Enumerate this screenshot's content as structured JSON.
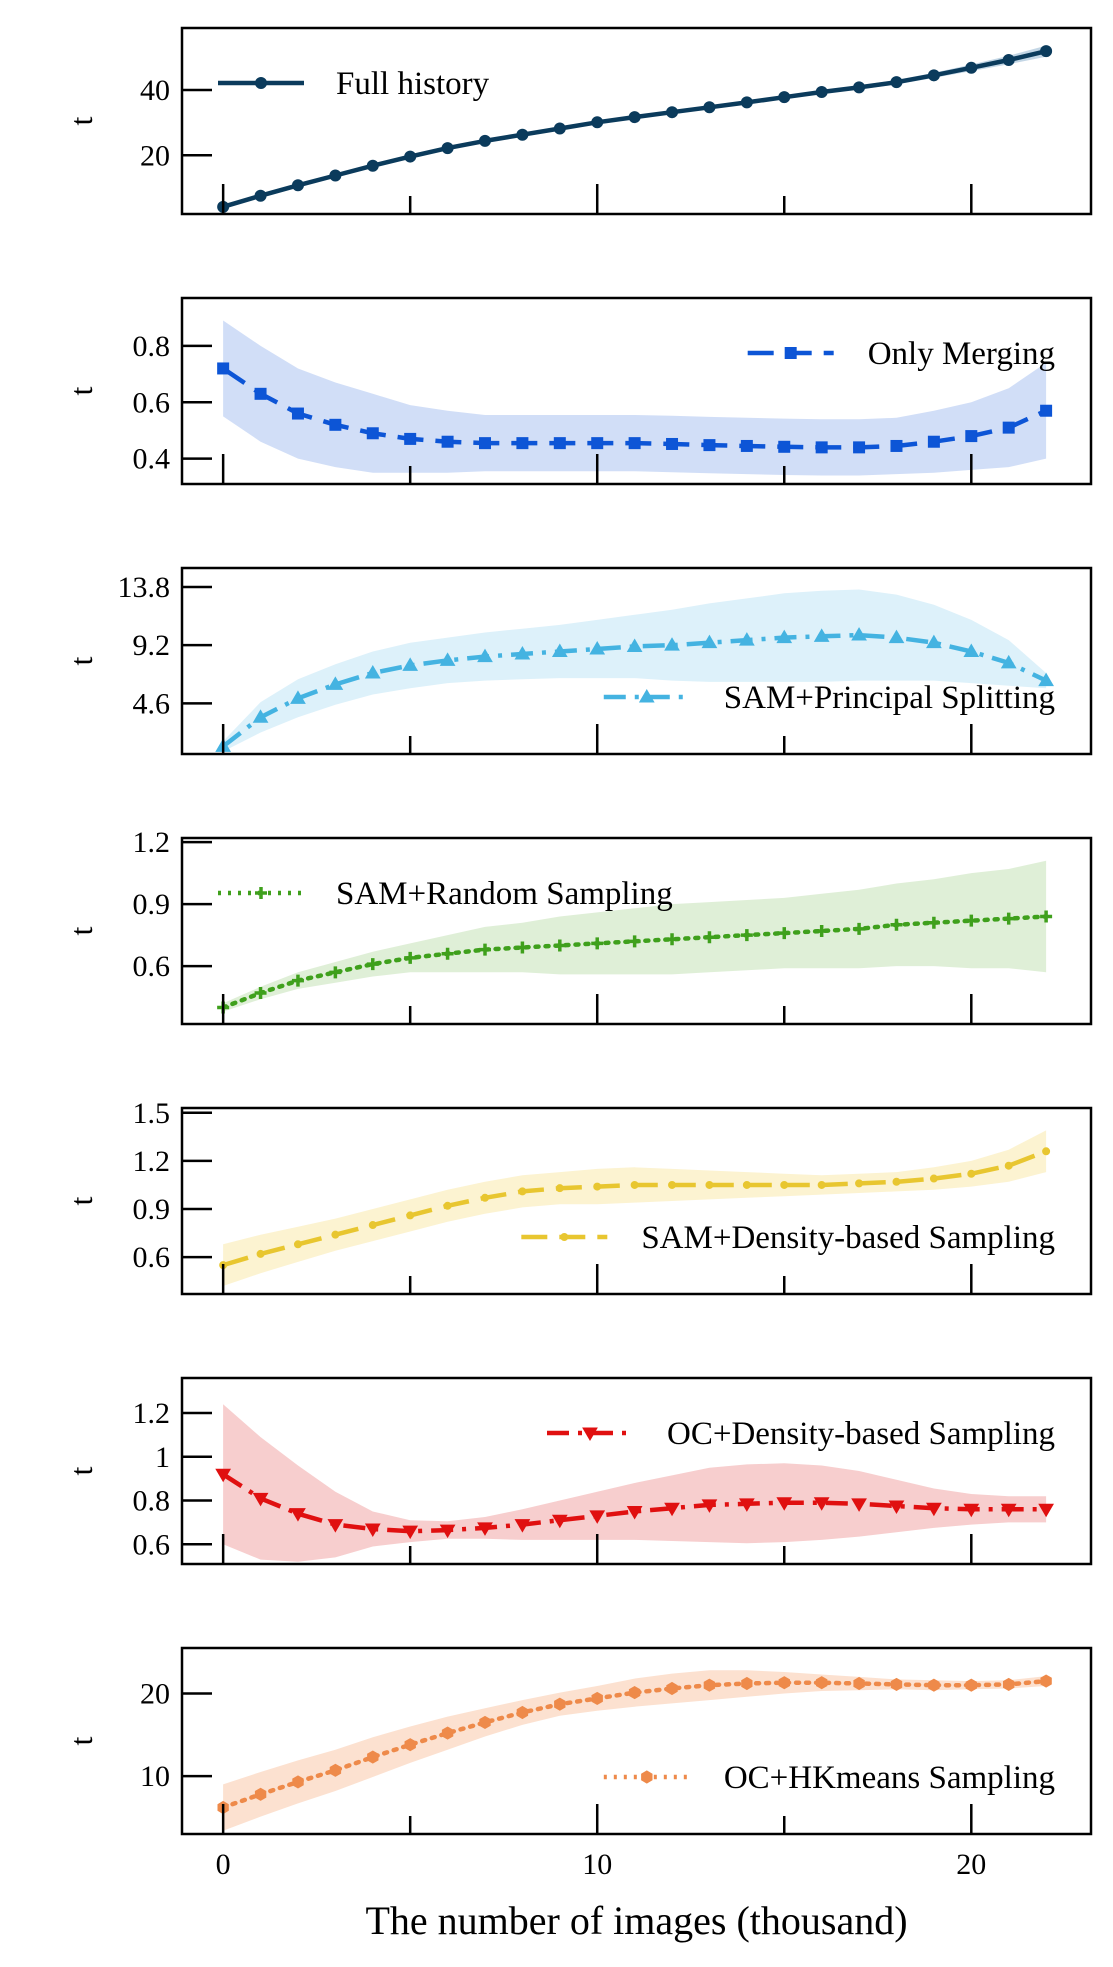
{
  "chart_data": [
    {
      "type": "line",
      "ylabel": "t",
      "yticks": [
        20,
        40
      ],
      "ylim": [
        2,
        59
      ],
      "legend": "Full history",
      "legend_position": "top-left",
      "color": "#0b3b5c",
      "band_color": "#b9cfe0",
      "line_style": "solid",
      "marker": "circle",
      "x": [
        0,
        1,
        2,
        3,
        4,
        5,
        6,
        7,
        8,
        9,
        10,
        11,
        12,
        13,
        14,
        15,
        16,
        17,
        18,
        19,
        20,
        21,
        22
      ],
      "values": [
        4.2,
        7.6,
        10.8,
        13.8,
        16.8,
        19.6,
        22.2,
        24.4,
        26.3,
        28.2,
        30.1,
        31.7,
        33.2,
        34.7,
        36.2,
        37.8,
        39.4,
        40.8,
        42.4,
        44.5,
        46.8,
        49.2,
        51.9
      ],
      "band": [
        0.3,
        0.3,
        0.3,
        0.3,
        0.3,
        0.3,
        0.3,
        0.3,
        0.3,
        0.3,
        0.4,
        0.4,
        0.4,
        0.4,
        0.5,
        0.5,
        0.5,
        0.6,
        0.7,
        0.8,
        1.0,
        1.3,
        1.7
      ]
    },
    {
      "type": "line",
      "ylabel": "t",
      "yticks": [
        0.4,
        0.6,
        0.8
      ],
      "ylim": [
        0.31,
        0.97
      ],
      "legend": "Only Merging",
      "legend_position": "top-right",
      "color": "#0d55d6",
      "band_color": "#c9d8f6",
      "line_style": "dashed",
      "marker": "square",
      "x": [
        0,
        1,
        2,
        3,
        4,
        5,
        6,
        7,
        8,
        9,
        10,
        11,
        12,
        13,
        14,
        15,
        16,
        17,
        18,
        19,
        20,
        21,
        22
      ],
      "values": [
        0.72,
        0.63,
        0.56,
        0.52,
        0.49,
        0.47,
        0.46,
        0.455,
        0.455,
        0.455,
        0.455,
        0.455,
        0.452,
        0.448,
        0.445,
        0.442,
        0.44,
        0.44,
        0.445,
        0.46,
        0.48,
        0.51,
        0.57
      ],
      "band": [
        0.17,
        0.17,
        0.16,
        0.15,
        0.14,
        0.12,
        0.11,
        0.1,
        0.1,
        0.1,
        0.1,
        0.1,
        0.1,
        0.1,
        0.1,
        0.1,
        0.1,
        0.1,
        0.1,
        0.11,
        0.12,
        0.14,
        0.17
      ]
    },
    {
      "type": "line",
      "ylabel": "t",
      "yticks": [
        4.6,
        9.2,
        13.8
      ],
      "ylim": [
        0.6,
        15.3
      ],
      "legend": "SAM+Principal Splitting",
      "legend_position": "lower-right",
      "color": "#44b3e1",
      "band_color": "#d7eef9",
      "line_style": "dashdot",
      "marker": "triangle",
      "x": [
        0,
        1,
        2,
        3,
        4,
        5,
        6,
        7,
        8,
        9,
        10,
        11,
        12,
        13,
        14,
        15,
        16,
        17,
        18,
        19,
        20,
        21,
        22
      ],
      "values": [
        1.2,
        3.5,
        5.0,
        6.1,
        7.0,
        7.6,
        8.0,
        8.3,
        8.5,
        8.7,
        8.9,
        9.1,
        9.2,
        9.4,
        9.6,
        9.8,
        9.9,
        10.0,
        9.8,
        9.4,
        8.7,
        7.8,
        6.4
      ],
      "band": [
        0.4,
        1.2,
        1.5,
        1.6,
        1.7,
        1.8,
        1.8,
        1.9,
        2.0,
        2.1,
        2.3,
        2.5,
        2.8,
        3.1,
        3.3,
        3.5,
        3.6,
        3.6,
        3.4,
        3.0,
        2.5,
        1.8,
        0.6
      ]
    },
    {
      "type": "line",
      "ylabel": "t",
      "yticks": [
        0.6,
        0.9,
        1.2
      ],
      "ylim": [
        0.32,
        1.22
      ],
      "legend": "SAM+Random Sampling",
      "legend_position": "top-left",
      "color": "#3fa01c",
      "band_color": "#d9ecd0",
      "line_style": "dotted",
      "marker": "plus",
      "x": [
        0,
        1,
        2,
        3,
        4,
        5,
        6,
        7,
        8,
        9,
        10,
        11,
        12,
        13,
        14,
        15,
        16,
        17,
        18,
        19,
        20,
        21,
        22
      ],
      "values": [
        0.4,
        0.47,
        0.53,
        0.57,
        0.61,
        0.64,
        0.66,
        0.68,
        0.69,
        0.7,
        0.71,
        0.72,
        0.73,
        0.74,
        0.75,
        0.76,
        0.77,
        0.78,
        0.8,
        0.81,
        0.82,
        0.83,
        0.84
      ],
      "band": [
        0.02,
        0.03,
        0.04,
        0.05,
        0.06,
        0.07,
        0.09,
        0.11,
        0.12,
        0.14,
        0.15,
        0.16,
        0.17,
        0.17,
        0.17,
        0.17,
        0.18,
        0.19,
        0.2,
        0.21,
        0.23,
        0.24,
        0.27
      ]
    },
    {
      "type": "line",
      "ylabel": "t",
      "yticks": [
        0.6,
        0.9,
        1.2,
        1.5
      ],
      "ylim": [
        0.37,
        1.53
      ],
      "legend": "SAM+Density-based Sampling",
      "legend_position": "lower-right",
      "color": "#e8c630",
      "band_color": "#fbf1c9",
      "line_style": "dashed",
      "marker": "dot",
      "x": [
        0,
        1,
        2,
        3,
        4,
        5,
        6,
        7,
        8,
        9,
        10,
        11,
        12,
        13,
        14,
        15,
        16,
        17,
        18,
        19,
        20,
        21,
        22
      ],
      "values": [
        0.55,
        0.62,
        0.68,
        0.74,
        0.8,
        0.86,
        0.92,
        0.97,
        1.01,
        1.03,
        1.04,
        1.05,
        1.05,
        1.05,
        1.05,
        1.05,
        1.05,
        1.06,
        1.07,
        1.09,
        1.12,
        1.17,
        1.26
      ],
      "band": [
        0.13,
        0.12,
        0.11,
        0.1,
        0.1,
        0.1,
        0.1,
        0.1,
        0.1,
        0.1,
        0.11,
        0.11,
        0.1,
        0.09,
        0.08,
        0.07,
        0.06,
        0.06,
        0.06,
        0.07,
        0.08,
        0.1,
        0.13
      ]
    },
    {
      "type": "line",
      "ylabel": "t",
      "yticks": [
        0.6,
        0.8,
        1.0,
        1.2
      ],
      "ylim": [
        0.51,
        1.36
      ],
      "legend": "OC+Density-based Sampling",
      "legend_position": "top-right",
      "color": "#e01010",
      "band_color": "#f6c6c6",
      "line_style": "dashdot",
      "marker": "triangle-down",
      "x": [
        0,
        1,
        2,
        3,
        4,
        5,
        6,
        7,
        8,
        9,
        10,
        11,
        12,
        13,
        14,
        15,
        16,
        17,
        18,
        19,
        20,
        21,
        22
      ],
      "values": [
        0.92,
        0.81,
        0.74,
        0.69,
        0.67,
        0.66,
        0.665,
        0.675,
        0.69,
        0.71,
        0.73,
        0.75,
        0.765,
        0.78,
        0.785,
        0.79,
        0.79,
        0.785,
        0.775,
        0.765,
        0.76,
        0.76,
        0.76
      ],
      "band": [
        0.32,
        0.28,
        0.22,
        0.15,
        0.08,
        0.05,
        0.04,
        0.05,
        0.07,
        0.09,
        0.11,
        0.13,
        0.15,
        0.17,
        0.18,
        0.18,
        0.17,
        0.15,
        0.12,
        0.09,
        0.07,
        0.06,
        0.06
      ]
    },
    {
      "type": "line",
      "ylabel": "t",
      "yticks": [
        10,
        20
      ],
      "ylim": [
        3.0,
        25.5
      ],
      "legend": "OC+HKmeans Sampling",
      "legend_position": "lower-right",
      "color": "#ee8a4a",
      "band_color": "#fbdcc8",
      "line_style": "dotted",
      "marker": "hexagon",
      "x": [
        0,
        1,
        2,
        3,
        4,
        5,
        6,
        7,
        8,
        9,
        10,
        11,
        12,
        13,
        14,
        15,
        16,
        17,
        18,
        19,
        20,
        21,
        22
      ],
      "values": [
        6.2,
        7.8,
        9.3,
        10.7,
        12.3,
        13.8,
        15.2,
        16.5,
        17.7,
        18.7,
        19.4,
        20.1,
        20.6,
        21.0,
        21.2,
        21.3,
        21.3,
        21.2,
        21.1,
        21.0,
        21.0,
        21.1,
        21.5
      ],
      "band": [
        2.8,
        2.7,
        2.6,
        2.5,
        2.4,
        2.2,
        2.0,
        1.7,
        1.5,
        1.4,
        1.5,
        1.7,
        1.8,
        1.8,
        1.6,
        1.3,
        1.0,
        0.8,
        0.6,
        0.6,
        0.5,
        0.5,
        0.6
      ],
      "xticks": [
        0,
        10,
        20
      ],
      "xlabel": "The number of images (thousand)"
    }
  ]
}
